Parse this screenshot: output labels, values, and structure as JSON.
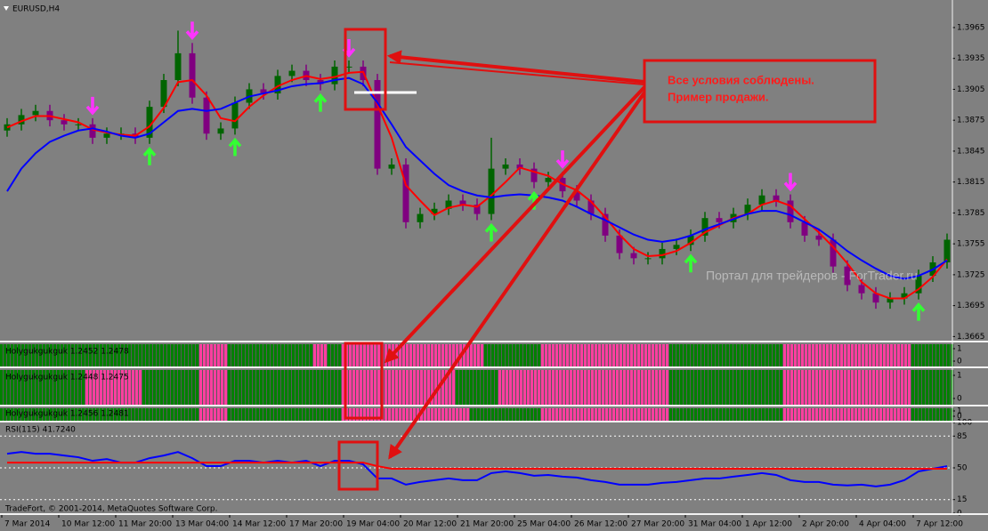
{
  "chart_data": [
    {
      "type": "candlestick",
      "title": "EURUSD,H4",
      "open": [
        1.3865,
        1.3871,
        1.388,
        1.3884,
        1.3875,
        1.3871,
        1.3871,
        1.3858,
        1.3862,
        1.3862,
        1.3858,
        1.3888,
        1.3914,
        1.394,
        1.3897,
        1.3862,
        1.3867,
        1.3892,
        1.3905,
        1.3901,
        1.3918,
        1.3923,
        1.3914,
        1.391,
        1.3927,
        1.3927,
        1.3914,
        1.3828,
        1.3832,
        1.3776,
        1.3784,
        1.3789,
        1.3797,
        1.3793,
        1.3784,
        1.3828,
        1.3832,
        1.3828,
        1.3815,
        1.3819,
        1.3806,
        1.3797,
        1.3784,
        1.3763,
        1.3746,
        1.3741,
        1.3741,
        1.375,
        1.3754,
        1.3763,
        1.378,
        1.3776,
        1.3784,
        1.3793,
        1.3802,
        1.3797,
        1.3776,
        1.3763,
        1.3759,
        1.3733,
        1.3715,
        1.3707,
        1.3698,
        1.3702,
        1.3707,
        1.3724,
        1.3737
      ],
      "high": [
        1.3877,
        1.3886,
        1.389,
        1.389,
        1.3881,
        1.3877,
        1.3877,
        1.3868,
        1.3868,
        1.3868,
        1.3894,
        1.392,
        1.3962,
        1.395,
        1.3903,
        1.3873,
        1.3898,
        1.3911,
        1.3911,
        1.3924,
        1.3929,
        1.3929,
        1.392,
        1.3933,
        1.3933,
        1.3933,
        1.392,
        1.3838,
        1.3838,
        1.379,
        1.3795,
        1.3803,
        1.3803,
        1.3799,
        1.3858,
        1.3838,
        1.3838,
        1.3834,
        1.3825,
        1.3825,
        1.3812,
        1.3803,
        1.379,
        1.3769,
        1.3752,
        1.3747,
        1.3756,
        1.376,
        1.3769,
        1.3786,
        1.3786,
        1.379,
        1.3799,
        1.3808,
        1.3808,
        1.3803,
        1.3782,
        1.3769,
        1.3765,
        1.3739,
        1.3721,
        1.3713,
        1.3708,
        1.3713,
        1.373,
        1.3743,
        1.3765
      ],
      "low": [
        1.3859,
        1.3865,
        1.3874,
        1.3869,
        1.3865,
        1.3865,
        1.3852,
        1.3852,
        1.3856,
        1.3852,
        1.3852,
        1.3882,
        1.3908,
        1.3891,
        1.3856,
        1.3856,
        1.3861,
        1.3886,
        1.3895,
        1.3895,
        1.3912,
        1.3908,
        1.3904,
        1.3904,
        1.3921,
        1.3908,
        1.3822,
        1.3822,
        1.377,
        1.377,
        1.3778,
        1.3783,
        1.3787,
        1.3778,
        1.3778,
        1.3822,
        1.3822,
        1.3809,
        1.3809,
        1.38,
        1.3791,
        1.3778,
        1.3757,
        1.374,
        1.3735,
        1.3735,
        1.3735,
        1.3744,
        1.3748,
        1.3757,
        1.377,
        1.377,
        1.3778,
        1.3787,
        1.3791,
        1.377,
        1.3757,
        1.3753,
        1.3727,
        1.3709,
        1.3701,
        1.3692,
        1.3692,
        1.3696,
        1.3701,
        1.3718,
        1.3731
      ],
      "close": [
        1.3871,
        1.388,
        1.3884,
        1.3875,
        1.3871,
        1.3871,
        1.3858,
        1.3862,
        1.3862,
        1.3858,
        1.3888,
        1.3914,
        1.394,
        1.3897,
        1.3862,
        1.3867,
        1.3892,
        1.3905,
        1.3901,
        1.3918,
        1.3923,
        1.3914,
        1.391,
        1.3927,
        1.3927,
        1.3914,
        1.3828,
        1.3832,
        1.3776,
        1.3784,
        1.3789,
        1.3797,
        1.3793,
        1.3784,
        1.3828,
        1.3832,
        1.3828,
        1.3815,
        1.3819,
        1.3806,
        1.3797,
        1.3784,
        1.3763,
        1.3746,
        1.3741,
        1.3741,
        1.375,
        1.3754,
        1.3763,
        1.378,
        1.3776,
        1.3784,
        1.3793,
        1.3802,
        1.3797,
        1.3776,
        1.3763,
        1.3759,
        1.3733,
        1.3715,
        1.3707,
        1.3698,
        1.3702,
        1.3707,
        1.3724,
        1.3737,
        1.3759
      ],
      "up_color": "#006400",
      "down_color": "#800080",
      "lines": [
        {
          "color": "#ff0000",
          "values": [
            1.3868,
            1.3874,
            1.3879,
            1.3879,
            1.3876,
            1.3873,
            1.3866,
            1.3863,
            1.3861,
            1.386,
            1.3869,
            1.3887,
            1.3912,
            1.3914,
            1.3899,
            1.3877,
            1.3874,
            1.3888,
            1.3899,
            1.3908,
            1.3914,
            1.3918,
            1.3915,
            1.3917,
            1.3921,
            1.3922,
            1.389,
            1.3858,
            1.3812,
            1.3797,
            1.3783,
            1.379,
            1.3793,
            1.3791,
            1.3802,
            1.3815,
            1.3829,
            1.3825,
            1.3821,
            1.3813,
            1.3807,
            1.3796,
            1.3781,
            1.3764,
            1.375,
            1.3743,
            1.3744,
            1.3748,
            1.3756,
            1.3766,
            1.3773,
            1.378,
            1.3784,
            1.3793,
            1.3797,
            1.3792,
            1.3779,
            1.3766,
            1.3752,
            1.3736,
            1.3718,
            1.3707,
            1.3702,
            1.3702,
            1.3711,
            1.3723,
            1.374
          ]
        },
        {
          "color": "#0000ff",
          "values": [
            1.3806,
            1.3828,
            1.3843,
            1.3854,
            1.386,
            1.3865,
            1.3867,
            1.3864,
            1.386,
            1.3858,
            1.3862,
            1.3873,
            1.3884,
            1.3886,
            1.3884,
            1.3886,
            1.3892,
            1.3898,
            1.3901,
            1.3904,
            1.3908,
            1.391,
            1.3911,
            1.3914,
            1.3916,
            1.391,
            1.3892,
            1.3871,
            1.3849,
            1.3836,
            1.3823,
            1.3812,
            1.3806,
            1.3802,
            1.38,
            1.3802,
            1.3803,
            1.3802,
            1.38,
            1.3797,
            1.3791,
            1.3784,
            1.3778,
            1.3771,
            1.3764,
            1.3759,
            1.3757,
            1.3759,
            1.3763,
            1.3769,
            1.3774,
            1.3779,
            1.3784,
            1.3787,
            1.3787,
            1.3783,
            1.3776,
            1.3769,
            1.3759,
            1.3748,
            1.3739,
            1.3731,
            1.3724,
            1.3721,
            1.3724,
            1.373,
            1.3739
          ]
        }
      ],
      "sell_signals": [
        6,
        13,
        24,
        39,
        55
      ],
      "sell_color": "#ff33ff",
      "buy_signals": [
        10,
        16,
        22,
        34,
        37,
        48,
        64
      ],
      "buy_color": "#33ff33",
      "ylim": [
        1.3661,
        1.399
      ],
      "yticks": [
        1.3665,
        1.3695,
        1.3725,
        1.3755,
        1.3785,
        1.3815,
        1.3845,
        1.3875,
        1.3905,
        1.3935,
        1.3965
      ],
      "annotation": [
        "Все условия соблюдены.",
        "Пример продажи."
      ],
      "watermark": "Портал для трейдеров - ForTrader.ru"
    },
    {
      "type": "state-histogram",
      "title": "Holygukgukguk 1.2452 1.2478",
      "states": [
        1,
        1,
        1,
        1,
        1,
        1,
        1,
        1,
        1,
        1,
        1,
        1,
        1,
        1,
        0,
        0,
        1,
        1,
        1,
        1,
        1,
        1,
        0,
        1,
        0,
        0,
        0,
        0,
        0,
        0,
        0,
        0,
        0,
        0,
        1,
        1,
        1,
        1,
        0,
        0,
        0,
        0,
        0,
        0,
        0,
        0,
        0,
        1,
        1,
        1,
        1,
        1,
        1,
        1,
        1,
        0,
        0,
        0,
        0,
        0,
        0,
        0,
        0,
        0,
        1,
        1,
        1
      ],
      "on_color": "#008000",
      "off_color": "#ff3fa0",
      "ylim": [
        0,
        1
      ],
      "yticks": [
        0,
        1
      ]
    },
    {
      "type": "state-histogram",
      "title": "Holygukgukguk 1.2448 1.2475",
      "states": [
        1,
        1,
        1,
        1,
        1,
        1,
        0,
        0,
        0,
        0,
        1,
        1,
        1,
        1,
        0,
        0,
        1,
        1,
        1,
        1,
        1,
        1,
        1,
        1,
        0,
        0,
        0,
        0,
        0,
        0,
        0,
        0,
        1,
        1,
        1,
        0,
        0,
        0,
        0,
        0,
        0,
        0,
        0,
        0,
        0,
        0,
        0,
        1,
        1,
        1,
        1,
        1,
        1,
        1,
        1,
        0,
        0,
        0,
        0,
        0,
        0,
        0,
        0,
        0,
        1,
        1,
        1
      ],
      "on_color": "#008000",
      "off_color": "#ff3fa0",
      "ylim": [
        0,
        1
      ],
      "yticks": [
        0,
        1
      ]
    },
    {
      "type": "state-histogram",
      "title": "Holygukgukguk 1.2456 1.2481",
      "states": [
        1,
        1,
        1,
        1,
        1,
        1,
        1,
        1,
        1,
        1,
        1,
        1,
        1,
        1,
        0,
        0,
        1,
        1,
        1,
        1,
        1,
        1,
        1,
        1,
        0,
        0,
        0,
        0,
        0,
        0,
        0,
        0,
        0,
        1,
        1,
        1,
        1,
        1,
        0,
        0,
        0,
        0,
        0,
        0,
        0,
        0,
        0,
        1,
        1,
        1,
        1,
        1,
        1,
        1,
        1,
        0,
        0,
        0,
        0,
        0,
        0,
        0,
        0,
        0,
        1,
        1,
        1
      ],
      "on_color": "#008000",
      "off_color": "#ff3fa0",
      "ylim": [
        0,
        1
      ],
      "yticks": [
        0,
        1
      ]
    },
    {
      "type": "line",
      "title": "RSI(115) 41.7240",
      "series": [
        {
          "color": "#0000ff",
          "values": [
            65.6,
            67.5,
            65.6,
            65.6,
            63.6,
            61.7,
            57.8,
            59.7,
            55.8,
            55.8,
            60.7,
            63.6,
            67.5,
            60.7,
            51.9,
            51.9,
            57.8,
            57.8,
            55.8,
            57.8,
            55.8,
            57.8,
            51.9,
            57.8,
            57.8,
            53.9,
            38.3,
            38.3,
            31.5,
            34.4,
            36.4,
            38.3,
            36.4,
            36.4,
            44.2,
            46.1,
            44.2,
            41.3,
            42.2,
            40.3,
            39.3,
            36.4,
            34.4,
            31.5,
            31.5,
            31.5,
            33.5,
            34.4,
            36.4,
            38.3,
            38.3,
            40.3,
            42.2,
            44.2,
            42.2,
            36.4,
            34.4,
            34.4,
            31.5,
            30.6,
            31.5,
            29.6,
            31.5,
            36.4,
            46.1,
            49.0,
            51.9
          ]
        },
        {
          "color": "#ff0000",
          "values": [
            55.8,
            55.8,
            55.8,
            55.8,
            55.8,
            55.8,
            55.8,
            55.8,
            55.8,
            55.8,
            55.8,
            55.8,
            55.8,
            55.8,
            55.8,
            55.8,
            55.8,
            55.8,
            55.8,
            55.8,
            55.8,
            55.8,
            55.8,
            55.8,
            55.8,
            55.8,
            51.9,
            49.0,
            49.0,
            49.0,
            49.0,
            49.0,
            49.0,
            49.0,
            49.0,
            49.0,
            49.0,
            49.0,
            49.0,
            49.0,
            49.0,
            49.0,
            49.0,
            49.0,
            49.0,
            49.0,
            49.0,
            49.0,
            49.0,
            49.0,
            49.0,
            49.0,
            49.0,
            49.0,
            49.0,
            49.0,
            49.0,
            49.0,
            49.0,
            49.0,
            49.0,
            49.0,
            49.0,
            49.0,
            49.0,
            49.0,
            49.0
          ]
        }
      ],
      "ylim": [
        0,
        100
      ],
      "yticks": [
        0,
        15,
        50,
        85,
        100
      ],
      "footer": "TradeFort, © 2001-2014, MetaQuotes Software Corp.",
      "time_labels": [
        "7 Mar 2014",
        "10 Mar 12:00",
        "11 Mar 20:00",
        "13 Mar 04:00",
        "14 Mar 12:00",
        "17 Mar 20:00",
        "19 Mar 04:00",
        "20 Mar 12:00",
        "21 Mar 20:00",
        "25 Mar 04:00",
        "26 Mar 12:00",
        "27 Mar 20:00",
        "31 Mar 04:00",
        "1 Apr 12:00",
        "2 Apr 20:00",
        "4 Apr 04:00",
        "7 Apr 12:00"
      ]
    }
  ]
}
